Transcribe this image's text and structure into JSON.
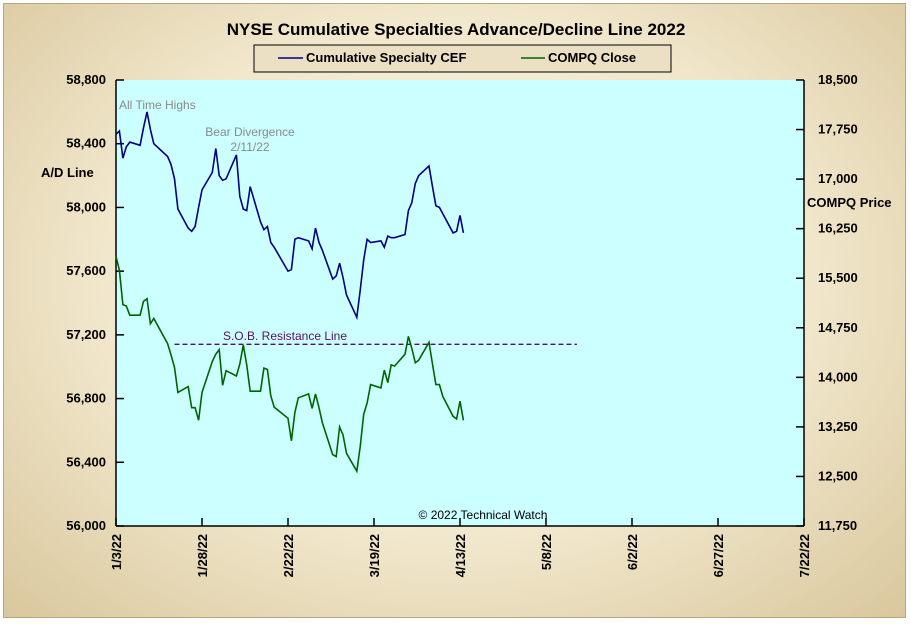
{
  "chart_data": {
    "type": "line",
    "title": "NYSE Cumulative  Specialties  Advance/Decline  Line  2022",
    "ylabel_left": "A/D Line",
    "ylabel_right": "COMPQ Price",
    "copyright": "© 2022  Technical Watch",
    "ylim_left": [
      56000,
      58800
    ],
    "ylim_right": [
      11750,
      18500
    ],
    "left_ticks": [
      "58,800",
      "58,400",
      "58,000",
      "57,600",
      "57,200",
      "56,800",
      "56,400",
      "56,000"
    ],
    "right_ticks": [
      "18,500",
      "17,750",
      "17,000",
      "16,250",
      "15,500",
      "14,750",
      "14,000",
      "13,250",
      "12,500",
      "11,750"
    ],
    "x_ticks": [
      "1/3/22",
      "1/28/22",
      "2/22/22",
      "3/19/22",
      "4/13/22",
      "5/8/22",
      "6/2/22",
      "6/27/22",
      "7/22/22"
    ],
    "grid": false,
    "legend": "top-center",
    "background_color": "#ccffff",
    "annotations": {
      "all_time_highs": "All Time Highs",
      "bear_divergence": "Bear Divergence",
      "bear_divergence_date": "2/11/22",
      "resistance": "S.O.B. Resistance Line",
      "resistance_level": 14500,
      "resistance_start": "1/20/22",
      "resistance_end": "5/17/22"
    },
    "series": [
      {
        "name": "Cumulative Specialty CEF",
        "axis": "left",
        "color": "#000080",
        "x": [
          "1/3/22",
          "1/4/22",
          "1/5/22",
          "1/6/22",
          "1/7/22",
          "1/10/22",
          "1/11/22",
          "1/12/22",
          "1/13/22",
          "1/14/22",
          "1/18/22",
          "1/19/22",
          "1/20/22",
          "1/21/22",
          "1/24/22",
          "1/25/22",
          "1/26/22",
          "1/27/22",
          "1/28/22",
          "1/31/22",
          "2/1/22",
          "2/2/22",
          "2/3/22",
          "2/4/22",
          "2/7/22",
          "2/8/22",
          "2/9/22",
          "2/10/22",
          "2/11/22",
          "2/14/22",
          "2/15/22",
          "2/16/22",
          "2/17/22",
          "2/18/22",
          "2/22/22",
          "2/23/22",
          "2/24/22",
          "2/25/22",
          "2/28/22",
          "3/1/22",
          "3/2/22",
          "3/3/22",
          "3/4/22",
          "3/7/22",
          "3/8/22",
          "3/9/22",
          "3/10/22",
          "3/11/22",
          "3/14/22",
          "3/15/22",
          "3/16/22",
          "3/17/22",
          "3/18/22",
          "3/21/22",
          "3/22/22",
          "3/23/22",
          "3/24/22",
          "3/25/22",
          "3/28/22",
          "3/29/22",
          "3/30/22",
          "3/31/22",
          "4/1/22",
          "4/4/22",
          "4/5/22",
          "4/6/22",
          "4/7/22",
          "4/8/22",
          "4/11/22",
          "4/12/22",
          "4/13/22",
          "4/14/22"
        ],
        "values": [
          58460,
          58480,
          58310,
          58380,
          58410,
          58390,
          58500,
          58600,
          58490,
          58400,
          58320,
          58270,
          58180,
          57990,
          57870,
          57850,
          57880,
          58000,
          58110,
          58220,
          58370,
          58200,
          58170,
          58180,
          58330,
          58070,
          57990,
          57980,
          58130,
          57910,
          57860,
          57880,
          57780,
          57750,
          57600,
          57610,
          57800,
          57810,
          57790,
          57740,
          57870,
          57780,
          57730,
          57550,
          57570,
          57650,
          57560,
          57450,
          57310,
          57480,
          57670,
          57800,
          57780,
          57790,
          57750,
          57820,
          57810,
          57810,
          57830,
          57980,
          58030,
          58150,
          58200,
          58260,
          58130,
          58010,
          58000,
          57960,
          57840,
          57850,
          57950,
          57840
        ]
      },
      {
        "name": "COMPQ Close",
        "axis": "right",
        "color": "#006400",
        "x": [
          "1/3/22",
          "1/4/22",
          "1/5/22",
          "1/6/22",
          "1/7/22",
          "1/10/22",
          "1/11/22",
          "1/12/22",
          "1/13/22",
          "1/14/22",
          "1/18/22",
          "1/19/22",
          "1/20/22",
          "1/21/22",
          "1/24/22",
          "1/25/22",
          "1/26/22",
          "1/27/22",
          "1/28/22",
          "1/31/22",
          "2/1/22",
          "2/2/22",
          "2/3/22",
          "2/4/22",
          "2/7/22",
          "2/8/22",
          "2/9/22",
          "2/10/22",
          "2/11/22",
          "2/14/22",
          "2/15/22",
          "2/16/22",
          "2/17/22",
          "2/18/22",
          "2/22/22",
          "2/23/22",
          "2/24/22",
          "2/25/22",
          "2/28/22",
          "3/1/22",
          "3/2/22",
          "3/3/22",
          "3/4/22",
          "3/7/22",
          "3/8/22",
          "3/9/22",
          "3/10/22",
          "3/11/22",
          "3/14/22",
          "3/15/22",
          "3/16/22",
          "3/17/22",
          "3/18/22",
          "3/21/22",
          "3/22/22",
          "3/23/22",
          "3/24/22",
          "3/25/22",
          "3/28/22",
          "3/29/22",
          "3/30/22",
          "3/31/22",
          "4/1/22",
          "4/4/22",
          "4/5/22",
          "4/6/22",
          "4/7/22",
          "4/8/22",
          "4/11/22",
          "4/12/22",
          "4/13/22",
          "4/14/22"
        ],
        "values": [
          15830,
          15620,
          15100,
          15080,
          14940,
          14940,
          15150,
          15190,
          14810,
          14890,
          14510,
          14340,
          14150,
          13770,
          13860,
          13540,
          13540,
          13350,
          13770,
          14240,
          14350,
          14420,
          13880,
          14100,
          14020,
          14200,
          14490,
          14190,
          13790,
          13790,
          14140,
          14120,
          13720,
          13550,
          13380,
          13040,
          13470,
          13690,
          13750,
          13530,
          13750,
          13540,
          13310,
          12830,
          12800,
          13250,
          13130,
          12850,
          12580,
          12950,
          13440,
          13610,
          13890,
          13840,
          14110,
          13920,
          14190,
          14170,
          14350,
          14620,
          14440,
          14220,
          14260,
          14530,
          14200,
          13890,
          13890,
          13710,
          13410,
          13370,
          13640,
          13350
        ]
      }
    ]
  },
  "legend_labels": {
    "cef": "Cumulative Specialty CEF",
    "compq": "COMPQ Close"
  }
}
